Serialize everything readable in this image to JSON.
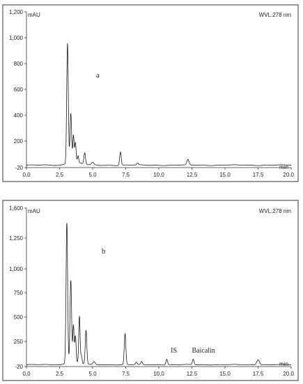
{
  "chart_data": [
    {
      "type": "line",
      "panel_label": "a",
      "yunit": "mAU",
      "xunit": "min",
      "wavelength": "WVL:278 nm",
      "xlim": [
        0,
        20
      ],
      "ylim": [
        -20,
        1200
      ],
      "xticks": [
        "0.0",
        "2.5",
        "5.0",
        "7.5",
        "10.0",
        "12.5",
        "15.0",
        "17.5",
        "20.0"
      ],
      "yticks": [
        "1,200",
        "1,000",
        "800",
        "600",
        "400",
        "200",
        "-20"
      ],
      "ytick_values": [
        1200,
        1000,
        800,
        600,
        400,
        200,
        -20
      ],
      "annotations": [],
      "peaks": [
        {
          "rt": 3.1,
          "h": 945,
          "w": 0.06
        },
        {
          "rt": 3.35,
          "h": 395,
          "w": 0.06
        },
        {
          "rt": 3.55,
          "h": 220,
          "w": 0.05
        },
        {
          "rt": 3.7,
          "h": 160,
          "w": 0.05
        },
        {
          "rt": 3.9,
          "h": 55,
          "w": 0.05
        },
        {
          "rt": 4.4,
          "h": 95,
          "w": 0.06
        },
        {
          "rt": 5.0,
          "h": 22,
          "w": 0.08
        },
        {
          "rt": 7.1,
          "h": 110,
          "w": 0.06
        },
        {
          "rt": 8.4,
          "h": 15,
          "w": 0.06
        },
        {
          "rt": 12.2,
          "h": 45,
          "w": 0.08
        }
      ]
    },
    {
      "type": "line",
      "panel_label": "b",
      "yunit": "mAU",
      "xunit": "min",
      "wavelength": "WVL:278 nm",
      "xlim": [
        0,
        20
      ],
      "ylim": [
        -20,
        1600
      ],
      "xticks": [
        "0.0",
        "2.5",
        "5.0",
        "7.5",
        "10.0",
        "12.5",
        "15.0",
        "17.5",
        "20.0"
      ],
      "yticks": [
        "1,600",
        "1,250",
        "1,000",
        "750",
        "500",
        "250",
        "-20"
      ],
      "ytick_values": [
        1600,
        1250,
        1000,
        750,
        500,
        250,
        -20
      ],
      "annotations": [
        {
          "text": "IS",
          "x": 10.9,
          "y": 130
        },
        {
          "text": "Baicalin",
          "x": 12.5,
          "y": 130
        }
      ],
      "peaks": [
        {
          "rt": 3.05,
          "h": 1420,
          "w": 0.06
        },
        {
          "rt": 3.35,
          "h": 860,
          "w": 0.06
        },
        {
          "rt": 3.55,
          "h": 390,
          "w": 0.05
        },
        {
          "rt": 3.7,
          "h": 280,
          "w": 0.05
        },
        {
          "rt": 4.0,
          "h": 490,
          "w": 0.05
        },
        {
          "rt": 4.15,
          "h": 80,
          "w": 0.05
        },
        {
          "rt": 4.5,
          "h": 360,
          "w": 0.06
        },
        {
          "rt": 5.1,
          "h": 30,
          "w": 0.08
        },
        {
          "rt": 7.45,
          "h": 330,
          "w": 0.06
        },
        {
          "rt": 8.3,
          "h": 25,
          "w": 0.06
        },
        {
          "rt": 8.7,
          "h": 30,
          "w": 0.06
        },
        {
          "rt": 10.6,
          "h": 60,
          "w": 0.06
        },
        {
          "rt": 12.6,
          "h": 60,
          "w": 0.06
        },
        {
          "rt": 17.5,
          "h": 55,
          "w": 0.1
        }
      ]
    }
  ]
}
